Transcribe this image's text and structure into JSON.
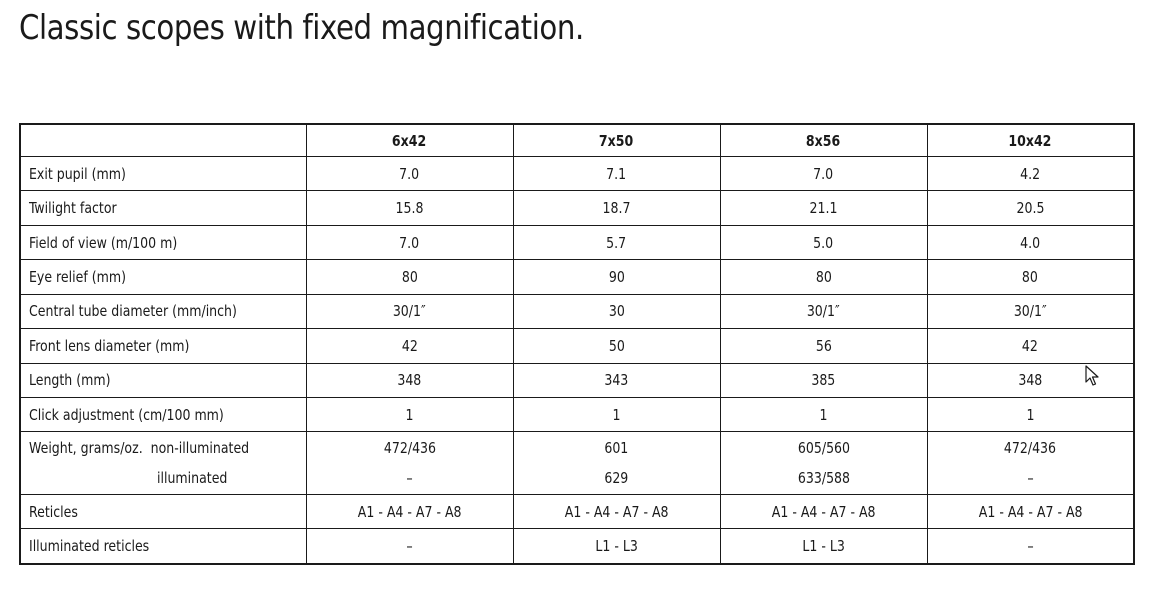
{
  "page": {
    "title": "Classic scopes with fixed magnification."
  },
  "table": {
    "columns": [
      "",
      "6x42",
      "7x50",
      "8x56",
      "10x42"
    ],
    "rows": [
      {
        "label": "Exit pupil (mm)",
        "values": [
          "7.0",
          "7.1",
          "7.0",
          "4.2"
        ]
      },
      {
        "label": "Twilight factor",
        "values": [
          "15.8",
          "18.7",
          "21.1",
          "20.5"
        ]
      },
      {
        "label": "Field of view (m/100 m)",
        "values": [
          "7.0",
          "5.7",
          "5.0",
          "4.0"
        ]
      },
      {
        "label": "Eye relief (mm)",
        "values": [
          "80",
          "90",
          "80",
          "80"
        ]
      },
      {
        "label": "Central tube diameter (mm/inch)",
        "values": [
          "30/1″",
          "30",
          "30/1″",
          "30/1″"
        ]
      },
      {
        "label": "Front lens diameter (mm)",
        "values": [
          "42",
          "50",
          "56",
          "42"
        ]
      },
      {
        "label": "Length (mm)",
        "values": [
          "348",
          "343",
          "385",
          "348"
        ]
      },
      {
        "label": "Click adjustment (cm/100 mm)",
        "values": [
          "1",
          "1",
          "1",
          "1"
        ]
      }
    ],
    "weight": {
      "label": "Weight, grams/oz.  non-illuminated",
      "sublabel": "illuminated",
      "non_illuminated": [
        "472/436",
        "601",
        "605/560",
        "472/436"
      ],
      "illuminated": [
        "–",
        "629",
        "633/588",
        "–"
      ]
    },
    "tail_rows": [
      {
        "label": "Reticles",
        "values": [
          "A1 - A4 - A7 - A8",
          "A1 - A4 - A7 - A8",
          "A1 - A4 - A7 - A8",
          "A1 - A4 - A7 - A8"
        ]
      },
      {
        "label": "Illuminated reticles",
        "values": [
          "–",
          "L1 - L3",
          "L1 - L3",
          "–"
        ]
      }
    ]
  }
}
